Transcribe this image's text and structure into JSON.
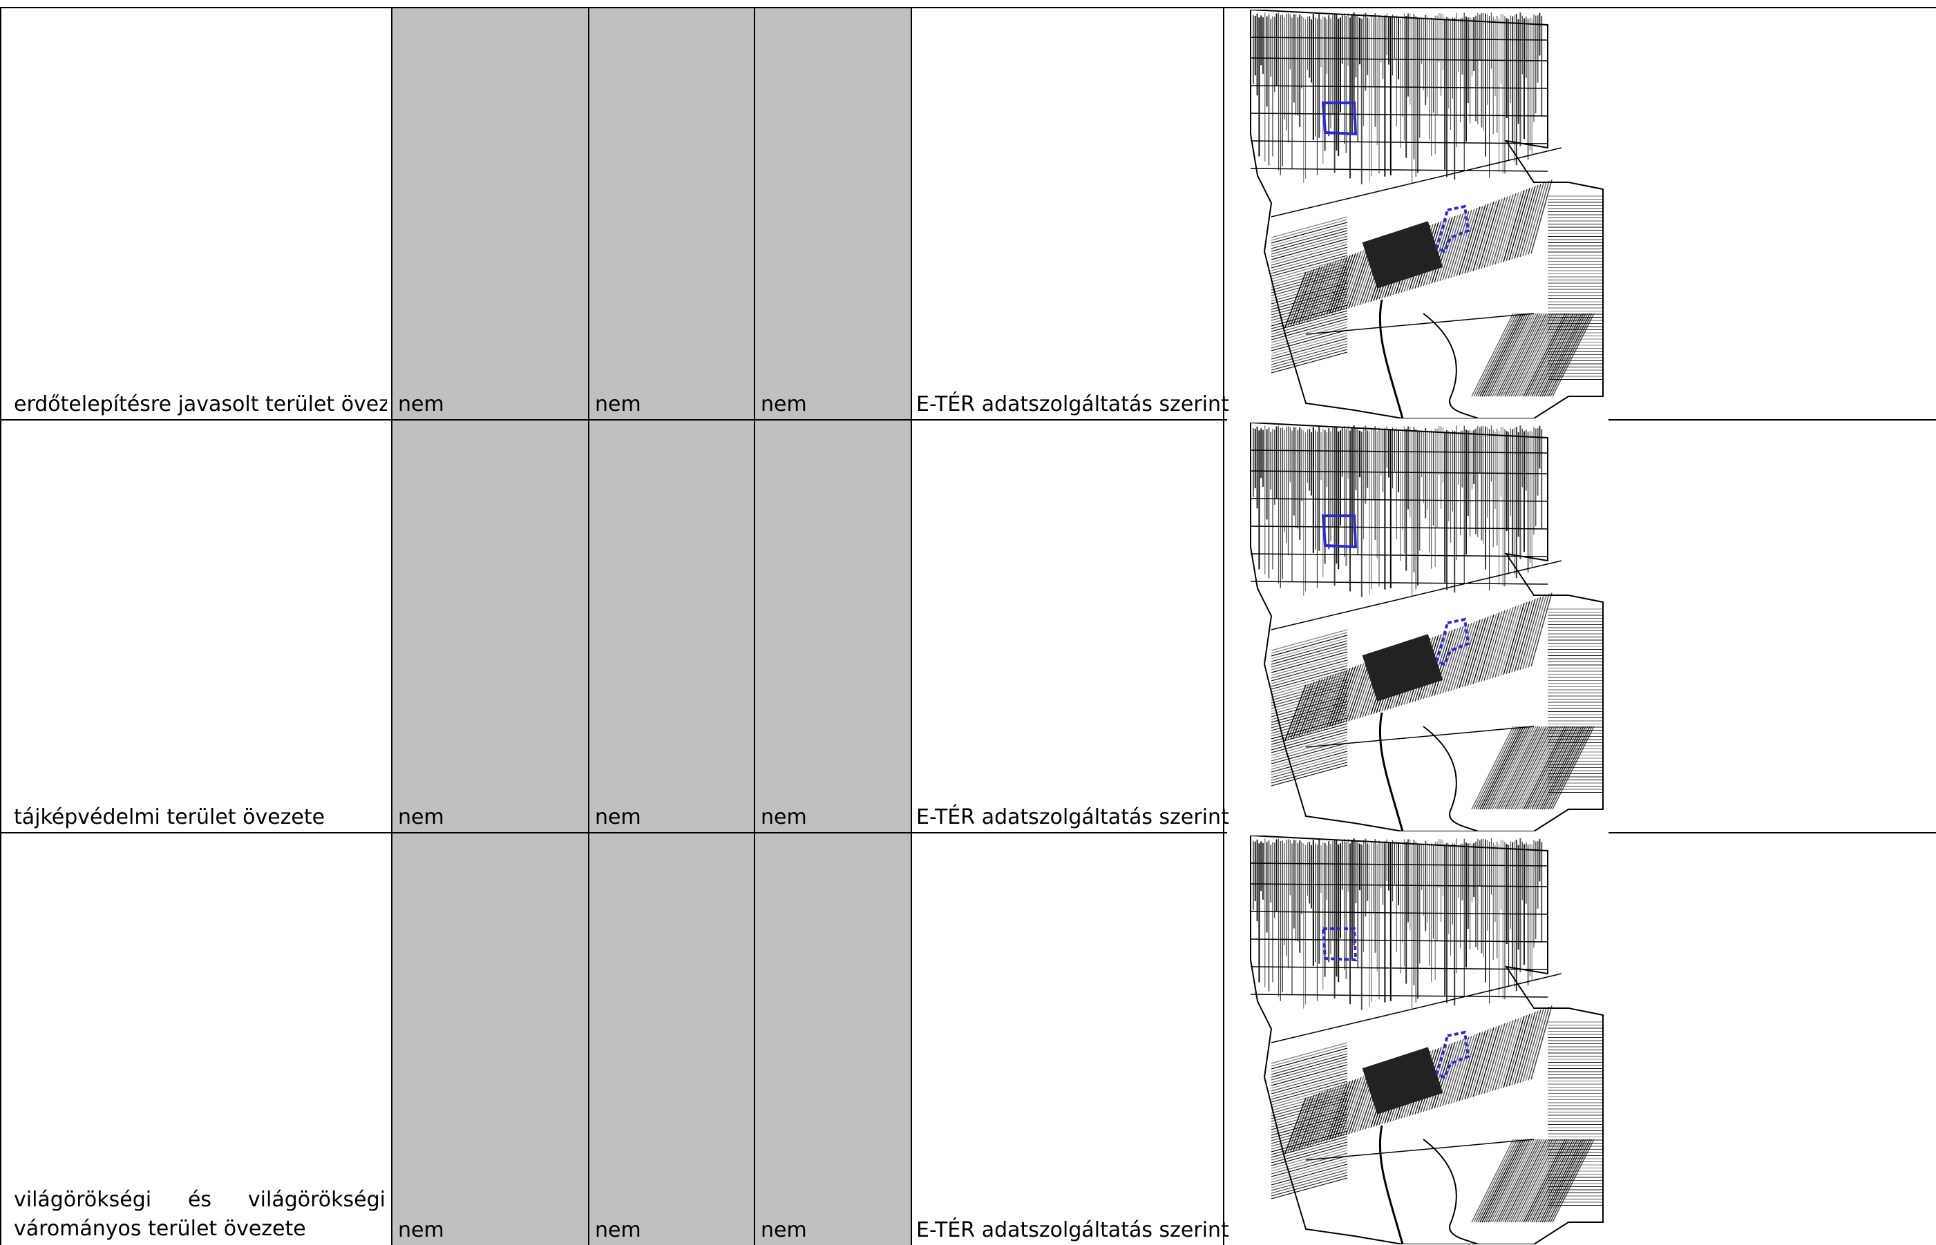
{
  "table": {
    "rows": [
      {
        "name_lines": [
          "erdőtelepítésre javasolt terület övezete"
        ],
        "col1": "nem",
        "col2": "nem",
        "col3": "nem",
        "source": "E-TÉR adatszolgáltatás szerint",
        "map_icon": "cadastral-map-thumbnail"
      },
      {
        "name_lines": [
          "tájképvédelmi terület övezete"
        ],
        "col1": "nem",
        "col2": "nem",
        "col3": "nem",
        "source": "E-TÉR adatszolgáltatás szerint",
        "map_icon": "cadastral-map-thumbnail"
      },
      {
        "name_lines": [
          "világörökségi és világörökségi",
          "váromány­yos terület övezete"
        ],
        "col1": "nem",
        "col2": "nem",
        "col3": "nem",
        "source": "E-TÉR adatszolgáltatás szerint",
        "map_icon": "cadastral-map-thumbnail"
      }
    ]
  },
  "colors": {
    "grey_cell": "#c0c0c0",
    "border": "#000000",
    "highlight_boundary": "#2a2ad6"
  }
}
